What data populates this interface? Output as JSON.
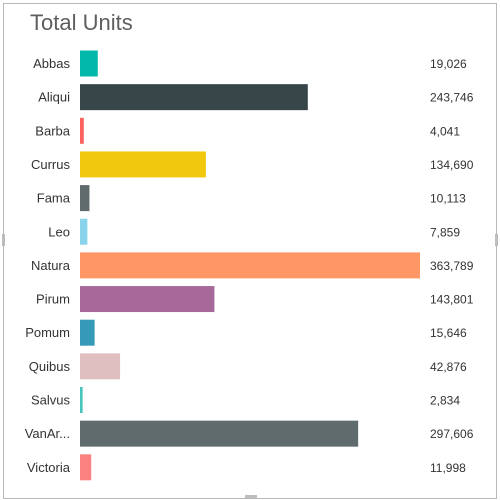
{
  "chart_data": {
    "type": "bar",
    "orientation": "horizontal",
    "title": "Total Units",
    "categories": [
      "Abbas",
      "Aliqui",
      "Barba",
      "Currus",
      "Fama",
      "Leo",
      "Natura",
      "Pirum",
      "Pomum",
      "Quibus",
      "Salvus",
      "VanAr...",
      "Victoria"
    ],
    "values": [
      19026,
      243746,
      4041,
      134690,
      10113,
      7859,
      363789,
      143801,
      15646,
      42876,
      2834,
      297606,
      11998
    ],
    "value_labels": [
      "19,026",
      "243,746",
      "4,041",
      "134,690",
      "10,113",
      "7,859",
      "363,789",
      "143,801",
      "15,646",
      "42,876",
      "2,834",
      "297,606",
      "11,998"
    ],
    "colors": [
      "#01B8AA",
      "#374649",
      "#FD625E",
      "#F2C80F",
      "#5F6B6D",
      "#8AD4EB",
      "#FE9666",
      "#A66999",
      "#3599B8",
      "#DFBFBF",
      "#4AC5BB",
      "#5F6B6D",
      "#FB8281"
    ],
    "xlim": [
      0,
      363789
    ],
    "grid": false,
    "legend": "none"
  }
}
